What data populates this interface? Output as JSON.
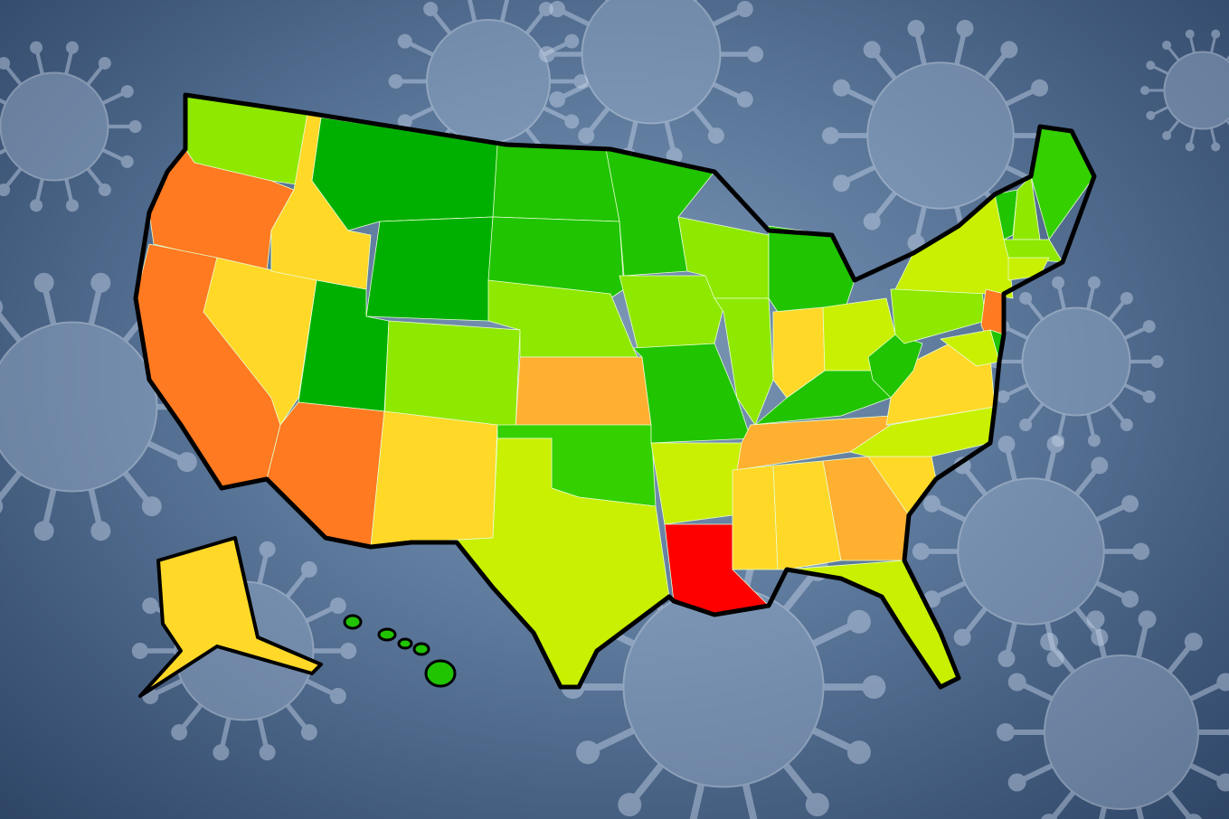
{
  "palette": {
    "dark_green": "#00b000",
    "green": "#20c400",
    "bright_green": "#34d000",
    "light_green": "#8ee800",
    "yellow_green": "#c8f000",
    "yellow": "#ffd828",
    "orange_yellow": "#ffb030",
    "orange": "#ff7a20",
    "red": "#ff0000"
  },
  "border_color": "#000000",
  "states": {
    "WA": "light_green",
    "OR": "orange",
    "CA": "orange",
    "ID": "yellow",
    "NV": "yellow",
    "AZ": "orange",
    "UT": "dark_green",
    "MT": "dark_green",
    "WY": "dark_green",
    "CO": "light_green",
    "NM": "yellow",
    "ND": "green",
    "SD": "green",
    "NE": "light_green",
    "KS": "orange_yellow",
    "OK": "bright_green",
    "TX": "yellow_green",
    "MN": "green",
    "IA": "light_green",
    "MO": "green",
    "AR": "yellow_green",
    "LA": "red",
    "WI": "light_green",
    "IL": "light_green",
    "MI": "green",
    "IN": "yellow",
    "OH": "yellow_green",
    "KY": "green",
    "TN": "orange_yellow",
    "MS": "yellow",
    "AL": "yellow",
    "GA": "orange_yellow",
    "FL": "yellow_green",
    "SC": "yellow",
    "NC": "yellow_green",
    "VA": "yellow",
    "WV": "green",
    "PA": "light_green",
    "NY": "yellow_green",
    "NJ": "orange",
    "DE": "green",
    "MD": "yellow_green",
    "VT": "green",
    "NH": "light_green",
    "ME": "bright_green",
    "MA": "light_green",
    "CT": "yellow_green",
    "AK": "yellow",
    "HI": "green"
  },
  "background_icon": "coronavirus-icon"
}
